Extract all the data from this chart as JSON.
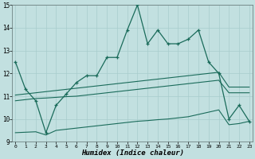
{
  "x": [
    0,
    1,
    2,
    3,
    4,
    5,
    6,
    7,
    8,
    9,
    10,
    11,
    12,
    13,
    14,
    15,
    16,
    17,
    18,
    19,
    20,
    21,
    22,
    23
  ],
  "line_main": [
    12.5,
    11.3,
    10.8,
    9.4,
    10.6,
    11.1,
    11.6,
    11.9,
    11.9,
    12.7,
    12.7,
    13.9,
    15.0,
    13.3,
    13.9,
    13.3,
    13.3,
    13.5,
    13.9,
    12.5,
    12.0,
    10.0,
    10.6,
    9.9
  ],
  "line_upper": [
    11.05,
    11.1,
    11.15,
    11.2,
    11.25,
    11.3,
    11.35,
    11.4,
    11.45,
    11.5,
    11.55,
    11.6,
    11.65,
    11.7,
    11.75,
    11.8,
    11.85,
    11.9,
    11.95,
    12.0,
    12.05,
    11.4,
    11.4,
    11.4
  ],
  "line_mid": [
    10.8,
    10.85,
    10.9,
    10.92,
    10.95,
    10.98,
    11.0,
    11.05,
    11.1,
    11.15,
    11.2,
    11.25,
    11.3,
    11.35,
    11.4,
    11.45,
    11.5,
    11.55,
    11.6,
    11.65,
    11.7,
    11.15,
    11.15,
    11.15
  ],
  "line_lower": [
    9.4,
    9.42,
    9.44,
    9.3,
    9.5,
    9.55,
    9.6,
    9.65,
    9.7,
    9.75,
    9.8,
    9.85,
    9.9,
    9.93,
    9.97,
    10.0,
    10.05,
    10.1,
    10.2,
    10.3,
    10.4,
    9.75,
    9.8,
    9.9
  ],
  "color": "#1a6b5a",
  "bg_color": "#c2e0e0",
  "grid_color": "#a8cccc",
  "xlabel": "Humidex (Indice chaleur)",
  "ylim": [
    9,
    15
  ],
  "xlim": [
    -0.3,
    23.3
  ],
  "yticks": [
    9,
    10,
    11,
    12,
    13,
    14,
    15
  ],
  "xticks": [
    0,
    1,
    2,
    3,
    4,
    5,
    6,
    7,
    8,
    9,
    10,
    11,
    12,
    13,
    14,
    15,
    16,
    17,
    18,
    19,
    20,
    21,
    22,
    23
  ]
}
